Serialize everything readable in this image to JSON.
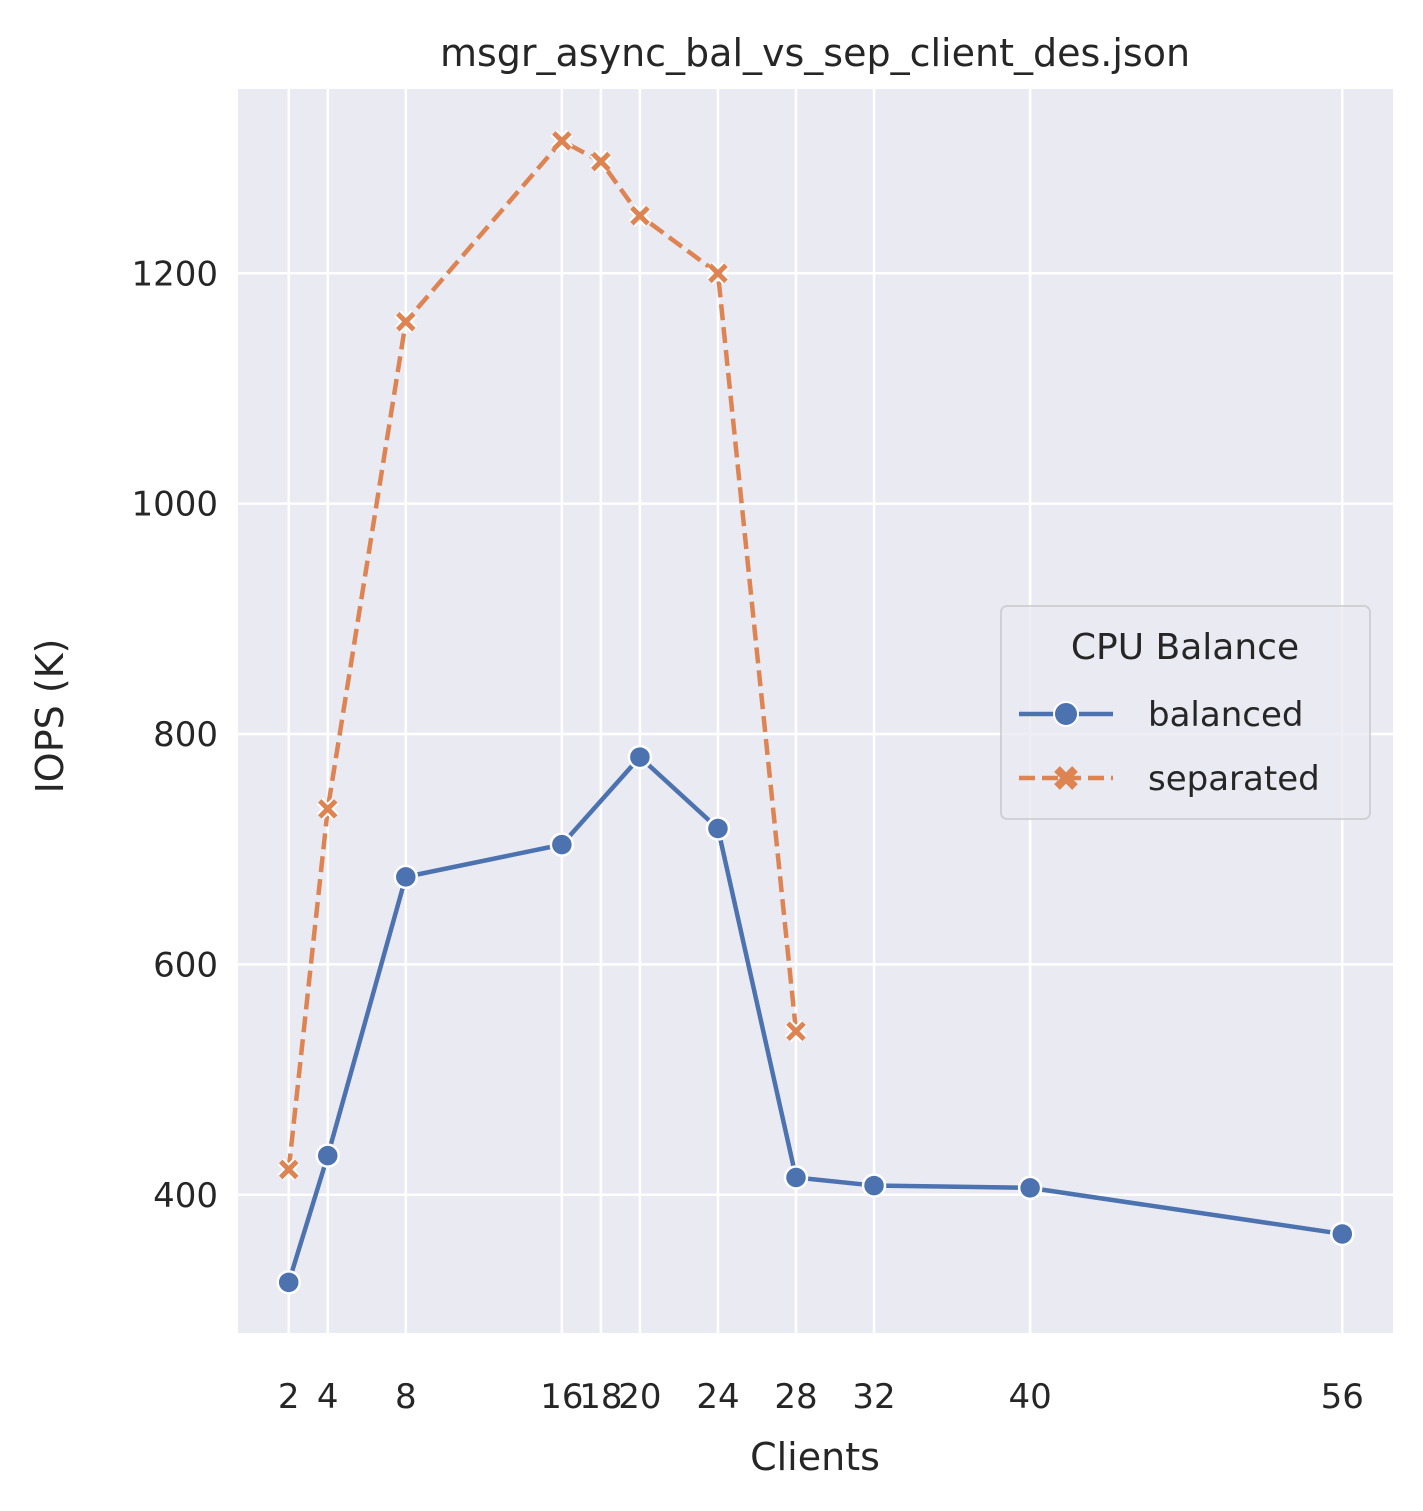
{
  "chart_data": {
    "type": "line",
    "title": "msgr_async_bal_vs_sep_client_des.json",
    "xlabel": "Clients",
    "ylabel": "IOPS (K)",
    "x_ticks": [
      2,
      4,
      8,
      16,
      18,
      20,
      24,
      28,
      32,
      40,
      56
    ],
    "y_ticks": [
      400,
      600,
      800,
      1000,
      1200
    ],
    "xlim": [
      -0.6,
      58.6
    ],
    "ylim": [
      280,
      1360
    ],
    "grid": true,
    "legend": {
      "title": "CPU Balance",
      "placement": "center-right"
    },
    "series": [
      {
        "name": "balanced",
        "color": "#4c72b0",
        "marker": "circle",
        "dash": "solid",
        "x": [
          2,
          4,
          8,
          16,
          20,
          24,
          28,
          32,
          40,
          56
        ],
        "y": [
          324,
          434,
          676,
          704,
          780,
          718,
          415,
          408,
          406,
          366
        ]
      },
      {
        "name": "separated",
        "color": "#dd8452",
        "marker": "x",
        "dash": "dashed",
        "x": [
          2,
          4,
          8,
          16,
          18,
          20,
          24,
          28
        ],
        "y": [
          422,
          735,
          1158,
          1315,
          1297,
          1250,
          1200,
          542
        ]
      }
    ]
  }
}
